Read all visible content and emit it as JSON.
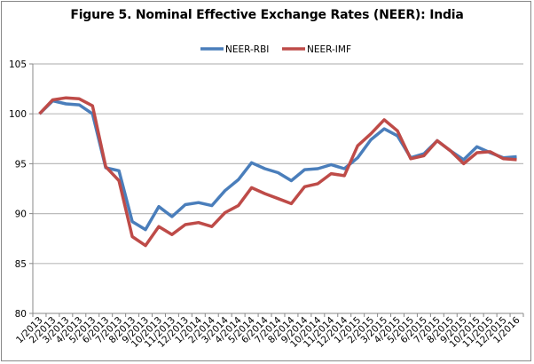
{
  "chart_data": {
    "type": "line",
    "title": "Figure 5. Nominal Effective Exchange Rates (NEER): India",
    "xlabel": "",
    "ylabel": "",
    "ylim": [
      80,
      105
    ],
    "yticks": [
      "80",
      "85",
      "90",
      "95",
      "100",
      "105"
    ],
    "grid": true,
    "legend_position": "top-center",
    "categories": [
      "1/2013",
      "2/2013",
      "3/2013",
      "4/2013",
      "5/2013",
      "6/2013",
      "7/2013",
      "8/2013",
      "9/2013",
      "10/2013",
      "11/2013",
      "12/2013",
      "1/2014",
      "2/2014",
      "3/2014",
      "4/2014",
      "5/2014",
      "6/2014",
      "7/2014",
      "8/2014",
      "9/2014",
      "10/2014",
      "11/2014",
      "12/2014",
      "1/2015",
      "2/2015",
      "3/2015",
      "4/2015",
      "5/2015",
      "6/2015",
      "7/2015",
      "8/2015",
      "9/2015",
      "10/2015",
      "11/2015",
      "12/2015",
      "1/2016"
    ],
    "series": [
      {
        "name": "NEER-RBI",
        "color": "#4a7ebb",
        "values": [
          100.0,
          101.3,
          101.0,
          100.9,
          100.0,
          94.6,
          94.3,
          89.2,
          88.4,
          90.7,
          89.7,
          90.9,
          91.1,
          90.8,
          92.3,
          93.4,
          95.1,
          94.5,
          94.1,
          93.3,
          94.4,
          94.5,
          94.9,
          94.5,
          95.6,
          97.4,
          98.5,
          97.8,
          95.6,
          96.0,
          97.3,
          96.3,
          95.4,
          96.7,
          96.1,
          95.6,
          95.7
        ]
      },
      {
        "name": "NEER-IMF",
        "color": "#be4b48",
        "values": [
          100.0,
          101.4,
          101.6,
          101.5,
          100.8,
          94.7,
          93.3,
          87.7,
          86.8,
          88.7,
          87.9,
          88.9,
          89.1,
          88.7,
          90.1,
          90.8,
          92.6,
          92.0,
          91.5,
          91.0,
          92.7,
          93.0,
          94.0,
          93.8,
          96.8,
          98.0,
          99.4,
          98.3,
          95.5,
          95.8,
          97.3,
          96.3,
          95.0,
          96.1,
          96.2,
          95.5,
          95.4
        ]
      }
    ]
  }
}
